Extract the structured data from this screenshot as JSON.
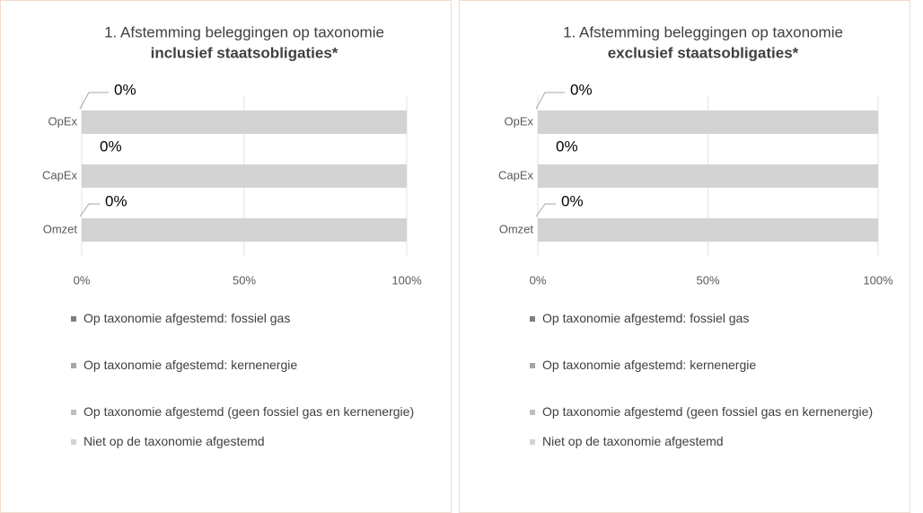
{
  "chart_data": [
    {
      "type": "stacked_bar",
      "orientation": "horizontal",
      "title": "1. Afstemming beleggingen op taxonomie",
      "subtitle": "inclusief staatsobligaties*",
      "categories": [
        "OpEx",
        "CapEx",
        "Omzet"
      ],
      "series": [
        {
          "name": "Op taxonomie afgestemd: fossiel gas",
          "color": "#7f7f7f",
          "values": [
            0,
            0,
            0
          ]
        },
        {
          "name": "Op taxonomie afgestemd: kernenergie",
          "color": "#a6a6a6",
          "values": [
            0,
            0,
            0
          ]
        },
        {
          "name": "Op taxonomie afgestemd (geen fossiel gas en kernenergie)",
          "color": "#bfbfbf",
          "values": [
            0,
            0,
            0
          ],
          "value_labels": [
            "0%",
            "0%",
            "0%"
          ]
        },
        {
          "name": "Niet op de taxonomie afgestemd",
          "color": "#d3d3d3",
          "values": [
            100,
            100,
            100
          ]
        }
      ],
      "xlim": [
        0,
        100
      ],
      "xticks": [
        {
          "value": 0,
          "label": "0%"
        },
        {
          "value": 50,
          "label": "50%"
        },
        {
          "value": 100,
          "label": "100%"
        }
      ],
      "grid": true,
      "legend": "bottom"
    },
    {
      "type": "stacked_bar",
      "orientation": "horizontal",
      "title": "1. Afstemming beleggingen op taxonomie",
      "subtitle": "exclusief staatsobligaties*",
      "categories": [
        "OpEx",
        "CapEx",
        "Omzet"
      ],
      "series": [
        {
          "name": "Op taxonomie afgestemd: fossiel gas",
          "color": "#7f7f7f",
          "values": [
            0,
            0,
            0
          ]
        },
        {
          "name": "Op taxonomie afgestemd: kernenergie",
          "color": "#a6a6a6",
          "values": [
            0,
            0,
            0
          ]
        },
        {
          "name": "Op taxonomie afgestemd (geen fossiel gas en kernenergie)",
          "color": "#bfbfbf",
          "values": [
            0,
            0,
            0
          ],
          "value_labels": [
            "0%",
            "0%",
            "0%"
          ]
        },
        {
          "name": "Niet op de taxonomie afgestemd",
          "color": "#d3d3d3",
          "values": [
            100,
            100,
            100
          ]
        }
      ],
      "xlim": [
        0,
        100
      ],
      "xticks": [
        {
          "value": 0,
          "label": "0%"
        },
        {
          "value": 50,
          "label": "50%"
        },
        {
          "value": 100,
          "label": "100%"
        }
      ],
      "grid": true,
      "legend": "bottom"
    }
  ]
}
